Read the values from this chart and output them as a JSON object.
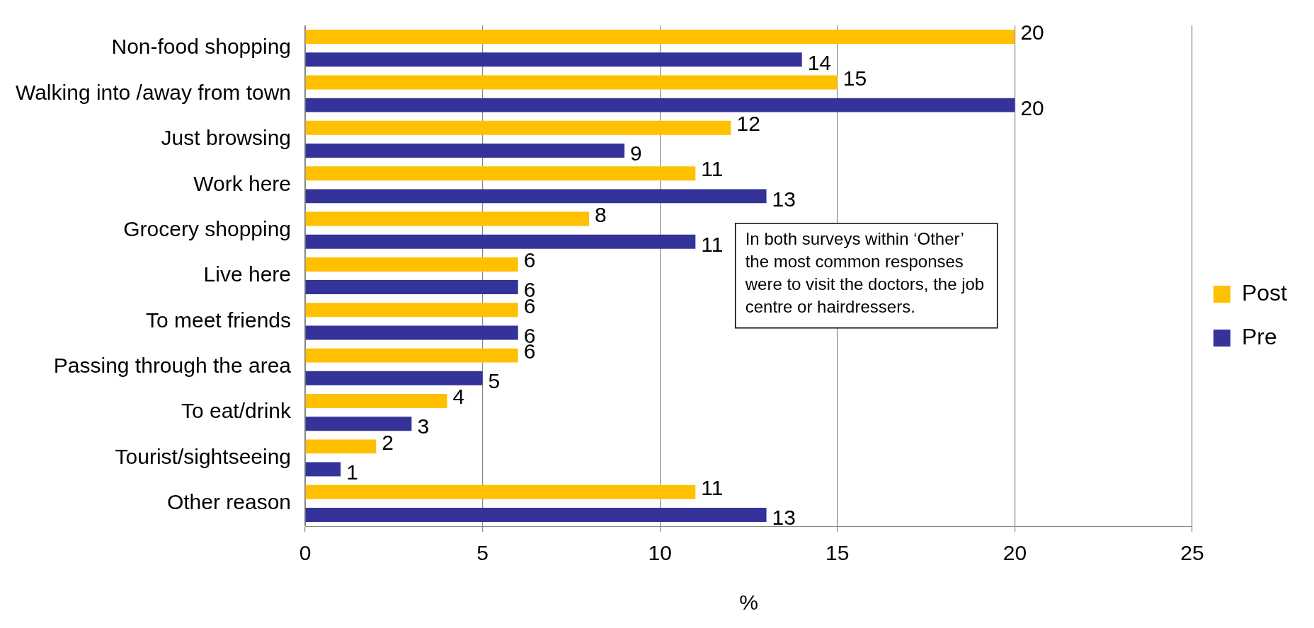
{
  "chart_data": {
    "type": "bar",
    "orientation": "horizontal",
    "xlabel": "%",
    "categories": [
      "Non-food shopping",
      "Walking into /away from town",
      "Just browsing",
      "Work here",
      "Grocery shopping",
      "Live here",
      "To meet friends",
      "Passing through the area",
      "To eat/drink",
      "Tourist/sightseeing",
      "Other reason"
    ],
    "series": [
      {
        "name": "Post",
        "color": "#ffc000",
        "values": [
          20,
          15,
          12,
          11,
          8,
          6,
          6,
          6,
          4,
          2,
          11
        ]
      },
      {
        "name": "Pre",
        "color": "#333399",
        "values": [
          14,
          20,
          9,
          13,
          11,
          6,
          6,
          5,
          3,
          1,
          13
        ]
      }
    ],
    "xlim": [
      0,
      25
    ],
    "xticks": [
      0,
      5,
      10,
      15,
      20,
      25
    ],
    "grid": "x",
    "legend": "right",
    "data_labels": true,
    "annotations": [
      "In both surveys within ‘Other’ the most common responses were to visit the doctors, the job centre or hairdressers."
    ]
  }
}
